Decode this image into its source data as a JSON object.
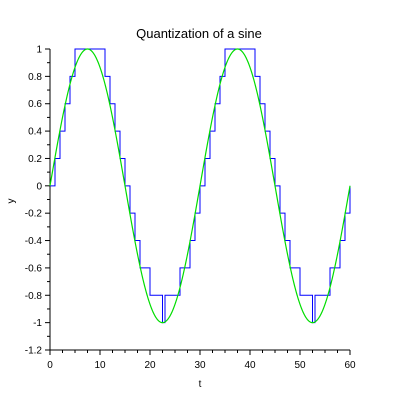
{
  "chart_data": {
    "type": "line",
    "title": "Quantization of a sine",
    "xlabel": "t",
    "ylabel": "y",
    "xlim": [
      0,
      60
    ],
    "ylim": [
      -1.2,
      1
    ],
    "x_ticks": [
      0,
      10,
      20,
      30,
      40,
      50,
      60
    ],
    "x_tick_labels": [
      "0",
      "10",
      "20",
      "30",
      "40",
      "50",
      "60"
    ],
    "y_ticks": [
      -1.2,
      -1,
      -0.8,
      -0.6,
      -0.4,
      -0.2,
      0,
      0.2,
      0.4,
      0.6,
      0.8,
      1
    ],
    "y_tick_labels": [
      "-1.2",
      "-1",
      "-0.8",
      "-0.6",
      "-0.4",
      "-0.2",
      "0",
      "0.2",
      "0.4",
      "0.6",
      "0.8",
      "1"
    ],
    "grid": false,
    "series": [
      {
        "kind": "step",
        "color": "#0000ff",
        "x": [
          0,
          1,
          2,
          3,
          4,
          5,
          6,
          7,
          8,
          9,
          10,
          11,
          12,
          13,
          14,
          15,
          16,
          17,
          18,
          19,
          20,
          21,
          22,
          22.5,
          23,
          24,
          25,
          26,
          27,
          28,
          29,
          30,
          31,
          32,
          33,
          34,
          35,
          36,
          37,
          38,
          39,
          40,
          41,
          42,
          43,
          44,
          45,
          46,
          47,
          48,
          49,
          50,
          51,
          52,
          52.5,
          53,
          54,
          55,
          56,
          57,
          58,
          59,
          60
        ],
        "y": [
          0,
          0.2,
          0.4,
          0.6,
          0.8,
          1,
          1,
          1,
          1,
          1,
          1,
          0.8,
          0.6,
          0.4,
          0.2,
          0,
          -0.2,
          -0.4,
          -0.6,
          -0.6,
          -0.8,
          -0.8,
          -0.8,
          -1,
          -0.8,
          -0.8,
          -0.8,
          -0.6,
          -0.6,
          -0.4,
          -0.2,
          0,
          0.2,
          0.4,
          0.6,
          0.8,
          1,
          1,
          1,
          1,
          1,
          1,
          0.8,
          0.6,
          0.4,
          0.2,
          0,
          -0.2,
          -0.4,
          -0.6,
          -0.6,
          -0.8,
          -0.8,
          -0.8,
          -1,
          -0.8,
          -0.8,
          -0.8,
          -0.6,
          -0.6,
          -0.4,
          -0.2,
          0
        ]
      },
      {
        "kind": "function",
        "color": "#00dd00",
        "expression": "sin(2*pi*t/30)",
        "amplitude": 1,
        "period": 30
      }
    ]
  }
}
